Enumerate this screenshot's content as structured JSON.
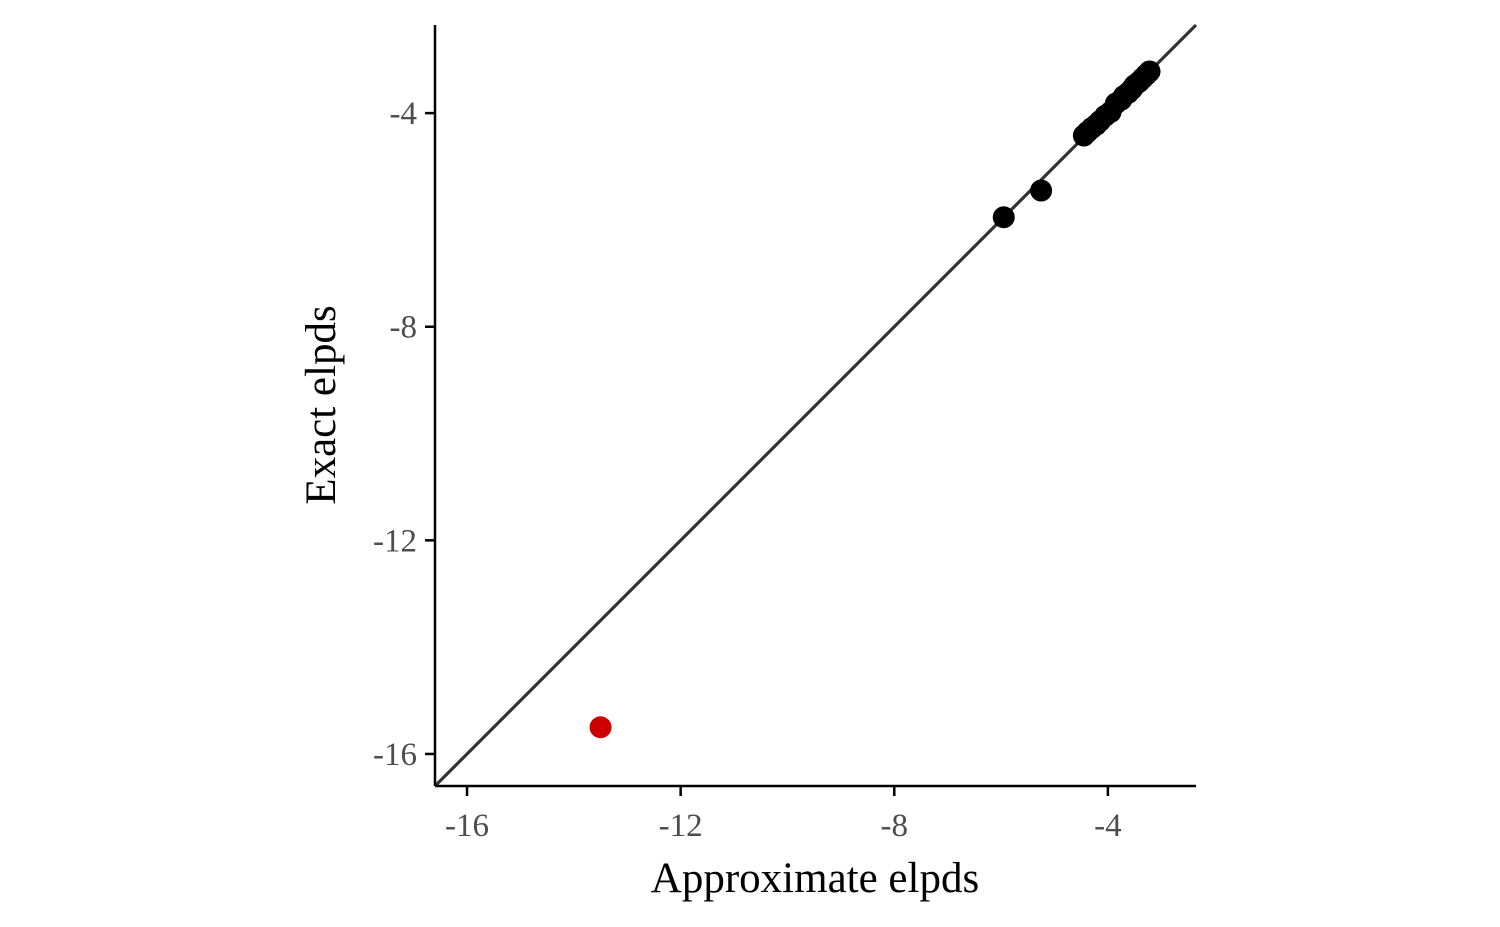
{
  "chart_data": {
    "type": "scatter",
    "title": "",
    "xlabel": "Approximate elpds",
    "ylabel": "Exact elpds",
    "xlim": [
      -16.6,
      -2.35
    ],
    "ylim": [
      -16.6,
      -2.35
    ],
    "xticks": [
      -16,
      -12,
      -8,
      -4
    ],
    "yticks": [
      -16,
      -12,
      -8,
      -4
    ],
    "xtick_labels": [
      "-16",
      "-12",
      "-8",
      "-4"
    ],
    "ytick_labels": [
      "-16",
      "-12",
      "-8",
      "-4"
    ],
    "grid": false,
    "reference_line": "y = x",
    "colors": {
      "normal": "#000000",
      "highlight": "#cc0000",
      "reference": "#333333"
    },
    "points": [
      {
        "x": -13.5,
        "y": -15.5,
        "highlight": true
      },
      {
        "x": -5.95,
        "y": -5.95
      },
      {
        "x": -5.25,
        "y": -5.45
      },
      {
        "x": -4.45,
        "y": -4.42
      },
      {
        "x": -4.38,
        "y": -4.35
      },
      {
        "x": -4.3,
        "y": -4.28
      },
      {
        "x": -4.22,
        "y": -4.22
      },
      {
        "x": -4.15,
        "y": -4.15
      },
      {
        "x": -4.05,
        "y": -4.05
      },
      {
        "x": -3.95,
        "y": -3.98
      },
      {
        "x": -3.85,
        "y": -3.82
      },
      {
        "x": -3.75,
        "y": -3.75
      },
      {
        "x": -3.7,
        "y": -3.68
      },
      {
        "x": -3.62,
        "y": -3.62
      },
      {
        "x": -3.55,
        "y": -3.55
      },
      {
        "x": -3.5,
        "y": -3.48
      },
      {
        "x": -3.42,
        "y": -3.42
      },
      {
        "x": -3.35,
        "y": -3.35
      },
      {
        "x": -3.28,
        "y": -3.28
      },
      {
        "x": -3.22,
        "y": -3.22
      }
    ]
  }
}
